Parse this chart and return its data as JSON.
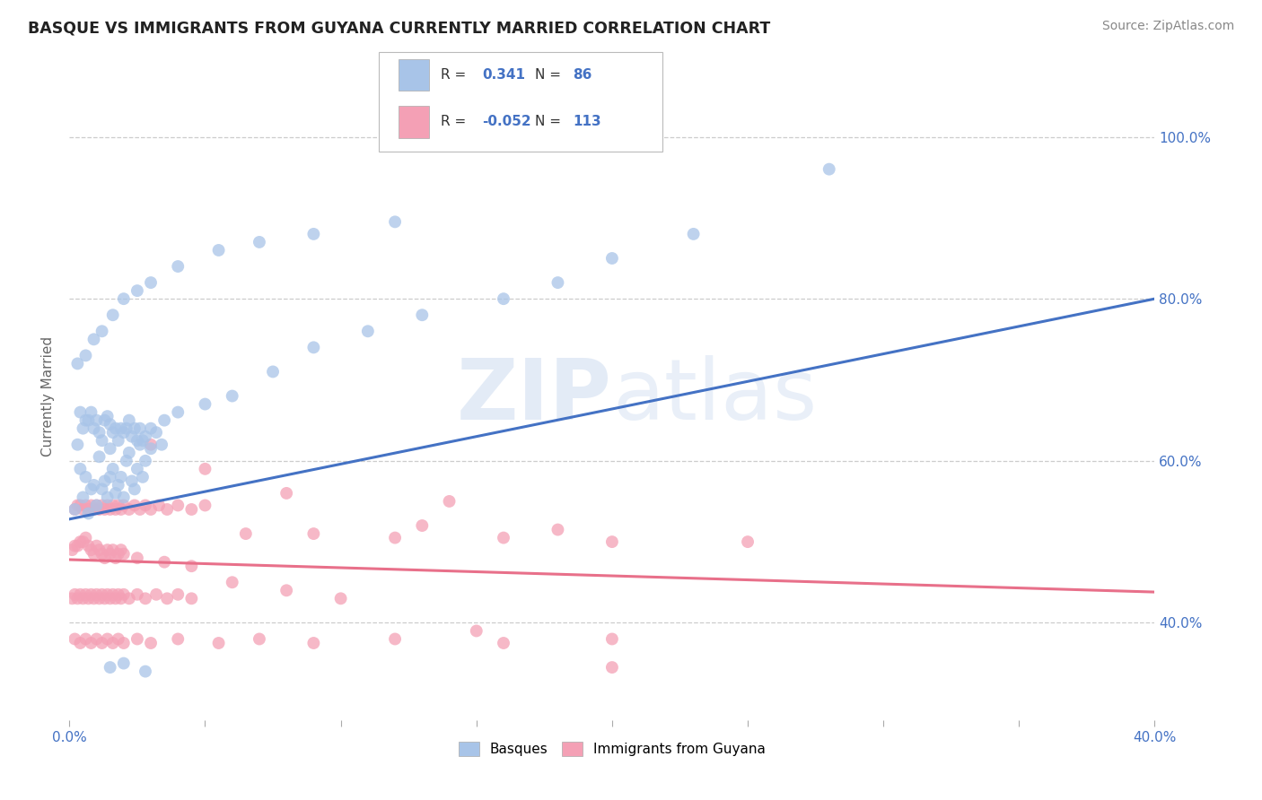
{
  "title": "BASQUE VS IMMIGRANTS FROM GUYANA CURRENTLY MARRIED CORRELATION CHART",
  "source": "Source: ZipAtlas.com",
  "ylabel": "Currently Married",
  "ylabel_right_ticks": [
    "40.0%",
    "60.0%",
    "80.0%",
    "100.0%"
  ],
  "ylabel_right_vals": [
    0.4,
    0.6,
    0.8,
    1.0
  ],
  "xlim": [
    0.0,
    0.4
  ],
  "ylim": [
    0.28,
    1.08
  ],
  "color_basque": "#a8c4e8",
  "color_guyana": "#f4a0b5",
  "color_basque_line": "#4472c4",
  "color_guyana_line": "#e8708a",
  "color_r_value": "#4472c4",
  "background_color": "#ffffff",
  "watermark_zip": "ZIP",
  "watermark_atlas": "atlas",
  "basque_trend_x": [
    0.0,
    0.4
  ],
  "basque_trend_y": [
    0.528,
    0.8
  ],
  "guyana_trend_x": [
    0.0,
    0.4
  ],
  "guyana_trend_y": [
    0.478,
    0.438
  ],
  "basque_x": [
    0.002,
    0.003,
    0.004,
    0.005,
    0.006,
    0.007,
    0.008,
    0.009,
    0.01,
    0.011,
    0.012,
    0.013,
    0.014,
    0.015,
    0.015,
    0.016,
    0.017,
    0.018,
    0.019,
    0.02,
    0.021,
    0.022,
    0.023,
    0.024,
    0.025,
    0.026,
    0.027,
    0.028,
    0.03,
    0.032,
    0.034,
    0.004,
    0.005,
    0.006,
    0.007,
    0.008,
    0.009,
    0.01,
    0.011,
    0.012,
    0.013,
    0.014,
    0.015,
    0.016,
    0.017,
    0.018,
    0.019,
    0.02,
    0.021,
    0.022,
    0.023,
    0.024,
    0.025,
    0.026,
    0.027,
    0.028,
    0.03,
    0.035,
    0.04,
    0.05,
    0.06,
    0.075,
    0.09,
    0.11,
    0.13,
    0.18,
    0.2,
    0.23,
    0.28,
    0.16,
    0.003,
    0.006,
    0.009,
    0.012,
    0.016,
    0.02,
    0.025,
    0.03,
    0.04,
    0.055,
    0.07,
    0.09,
    0.12,
    0.015,
    0.02,
    0.028
  ],
  "basque_y": [
    0.54,
    0.62,
    0.59,
    0.555,
    0.58,
    0.535,
    0.565,
    0.57,
    0.545,
    0.605,
    0.565,
    0.575,
    0.555,
    0.58,
    0.615,
    0.59,
    0.56,
    0.57,
    0.58,
    0.555,
    0.6,
    0.61,
    0.575,
    0.565,
    0.59,
    0.62,
    0.58,
    0.6,
    0.615,
    0.635,
    0.62,
    0.66,
    0.64,
    0.65,
    0.65,
    0.66,
    0.64,
    0.65,
    0.635,
    0.625,
    0.65,
    0.655,
    0.645,
    0.635,
    0.64,
    0.625,
    0.64,
    0.635,
    0.64,
    0.65,
    0.63,
    0.64,
    0.625,
    0.64,
    0.625,
    0.63,
    0.64,
    0.65,
    0.66,
    0.67,
    0.68,
    0.71,
    0.74,
    0.76,
    0.78,
    0.82,
    0.85,
    0.88,
    0.96,
    0.8,
    0.72,
    0.73,
    0.75,
    0.76,
    0.78,
    0.8,
    0.81,
    0.82,
    0.84,
    0.86,
    0.87,
    0.88,
    0.895,
    0.345,
    0.35,
    0.34
  ],
  "guyana_x": [
    0.001,
    0.002,
    0.003,
    0.004,
    0.005,
    0.006,
    0.007,
    0.008,
    0.009,
    0.01,
    0.011,
    0.012,
    0.013,
    0.014,
    0.015,
    0.016,
    0.017,
    0.018,
    0.019,
    0.02,
    0.002,
    0.003,
    0.004,
    0.005,
    0.006,
    0.007,
    0.008,
    0.009,
    0.01,
    0.011,
    0.012,
    0.013,
    0.014,
    0.015,
    0.016,
    0.017,
    0.018,
    0.019,
    0.02,
    0.022,
    0.024,
    0.026,
    0.028,
    0.03,
    0.033,
    0.036,
    0.04,
    0.045,
    0.05,
    0.001,
    0.002,
    0.003,
    0.004,
    0.005,
    0.006,
    0.007,
    0.008,
    0.009,
    0.01,
    0.011,
    0.012,
    0.013,
    0.014,
    0.015,
    0.016,
    0.017,
    0.018,
    0.019,
    0.02,
    0.022,
    0.025,
    0.028,
    0.032,
    0.036,
    0.04,
    0.045,
    0.002,
    0.004,
    0.006,
    0.008,
    0.01,
    0.012,
    0.014,
    0.016,
    0.018,
    0.02,
    0.025,
    0.03,
    0.04,
    0.055,
    0.07,
    0.09,
    0.12,
    0.16,
    0.2,
    0.065,
    0.09,
    0.12,
    0.16,
    0.2,
    0.25,
    0.13,
    0.18,
    0.14,
    0.08,
    0.05,
    0.03,
    0.025,
    0.035,
    0.045,
    0.06,
    0.08,
    0.1,
    0.15,
    0.2
  ],
  "guyana_y": [
    0.49,
    0.495,
    0.495,
    0.5,
    0.5,
    0.505,
    0.495,
    0.49,
    0.485,
    0.495,
    0.49,
    0.485,
    0.48,
    0.49,
    0.485,
    0.49,
    0.48,
    0.485,
    0.49,
    0.485,
    0.54,
    0.545,
    0.545,
    0.54,
    0.545,
    0.54,
    0.545,
    0.54,
    0.545,
    0.54,
    0.545,
    0.54,
    0.545,
    0.54,
    0.545,
    0.54,
    0.545,
    0.54,
    0.545,
    0.54,
    0.545,
    0.54,
    0.545,
    0.54,
    0.545,
    0.54,
    0.545,
    0.54,
    0.545,
    0.43,
    0.435,
    0.43,
    0.435,
    0.43,
    0.435,
    0.43,
    0.435,
    0.43,
    0.435,
    0.43,
    0.435,
    0.43,
    0.435,
    0.43,
    0.435,
    0.43,
    0.435,
    0.43,
    0.435,
    0.43,
    0.435,
    0.43,
    0.435,
    0.43,
    0.435,
    0.43,
    0.38,
    0.375,
    0.38,
    0.375,
    0.38,
    0.375,
    0.38,
    0.375,
    0.38,
    0.375,
    0.38,
    0.375,
    0.38,
    0.375,
    0.38,
    0.375,
    0.38,
    0.375,
    0.38,
    0.51,
    0.51,
    0.505,
    0.505,
    0.5,
    0.5,
    0.52,
    0.515,
    0.55,
    0.56,
    0.59,
    0.62,
    0.48,
    0.475,
    0.47,
    0.45,
    0.44,
    0.43,
    0.39,
    0.345
  ]
}
